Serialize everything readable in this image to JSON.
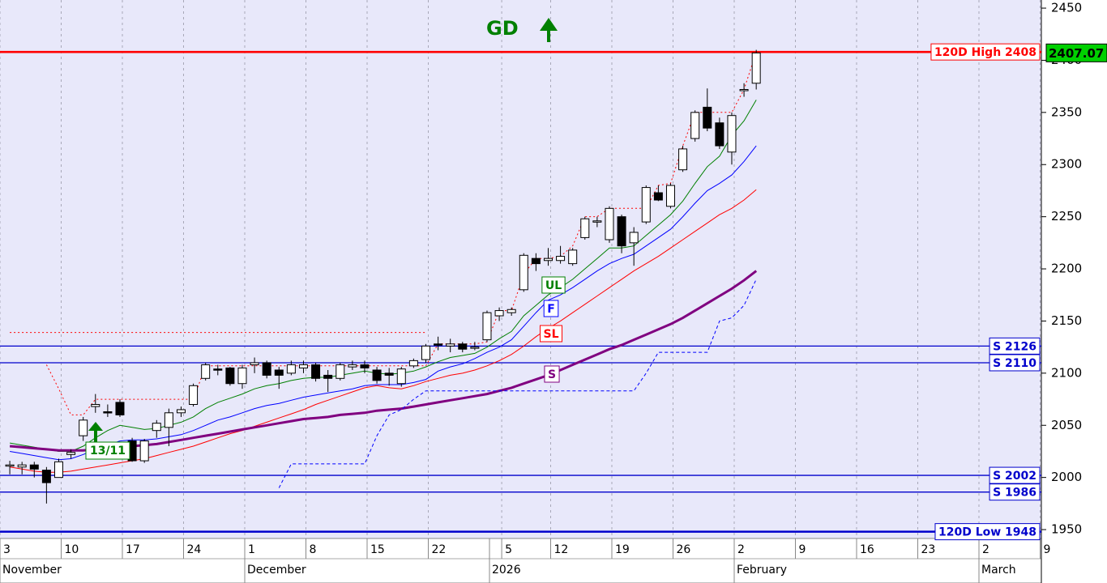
{
  "chart_data": {
    "type": "candlestick",
    "x": [
      0,
      1,
      2,
      3,
      4,
      5,
      6,
      7,
      8,
      9,
      10,
      11,
      12,
      13,
      14,
      15,
      16,
      17,
      18,
      19,
      20,
      21,
      22,
      23,
      24,
      25,
      26,
      27,
      28,
      29,
      30,
      31,
      32,
      33,
      34,
      35,
      36,
      37,
      38,
      39,
      40,
      41,
      42,
      43,
      44,
      45,
      46,
      47,
      48,
      49,
      50,
      51,
      52,
      53,
      54,
      55,
      56,
      57,
      58,
      59,
      60,
      61
    ],
    "open": [
      2012,
      2010,
      2012,
      2007,
      2000,
      2022,
      2040,
      2068,
      2063,
      2072,
      2035,
      2016,
      2045,
      2048,
      2062,
      2070,
      2095,
      2104,
      2105,
      2090,
      2108,
      2110,
      2103,
      2100,
      2105,
      2108,
      2098,
      2095,
      2106,
      2108,
      2103,
      2100,
      2090,
      2107,
      2113,
      2128,
      2126,
      2128,
      2124,
      2132,
      2155,
      2158,
      2180,
      2210,
      2208,
      2208,
      2205,
      2230,
      2245,
      2228,
      2250,
      2225,
      2245,
      2273,
      2260,
      2295,
      2325,
      2355,
      2340,
      2312,
      2371,
      2378
    ],
    "high": [
      2016,
      2015,
      2015,
      2010,
      2018,
      2027,
      2058,
      2080,
      2070,
      2075,
      2038,
      2037,
      2055,
      2066,
      2068,
      2090,
      2110,
      2108,
      2106,
      2108,
      2115,
      2112,
      2106,
      2112,
      2112,
      2110,
      2103,
      2110,
      2112,
      2112,
      2106,
      2105,
      2106,
      2114,
      2128,
      2135,
      2133,
      2130,
      2130,
      2160,
      2163,
      2163,
      2215,
      2215,
      2220,
      2222,
      2220,
      2250,
      2250,
      2260,
      2252,
      2240,
      2280,
      2280,
      2282,
      2318,
      2352,
      2373,
      2345,
      2350,
      2378,
      2410
    ],
    "low": [
      2003,
      2003,
      2000,
      1975,
      2000,
      2018,
      2035,
      2062,
      2058,
      2058,
      2015,
      2014,
      2038,
      2030,
      2058,
      2068,
      2093,
      2098,
      2088,
      2085,
      2100,
      2095,
      2085,
      2098,
      2100,
      2092,
      2082,
      2093,
      2103,
      2100,
      2090,
      2088,
      2087,
      2105,
      2110,
      2122,
      2120,
      2120,
      2122,
      2130,
      2150,
      2155,
      2178,
      2198,
      2203,
      2205,
      2203,
      2228,
      2240,
      2225,
      2215,
      2203,
      2243,
      2265,
      2258,
      2293,
      2322,
      2332,
      2315,
      2300,
      2365,
      2372
    ],
    "close": [
      2012,
      2012,
      2008,
      1995,
      2015,
      2024,
      2055,
      2070,
      2062,
      2060,
      2016,
      2035,
      2052,
      2062,
      2065,
      2088,
      2108,
      2103,
      2090,
      2105,
      2110,
      2098,
      2098,
      2108,
      2108,
      2095,
      2095,
      2108,
      2108,
      2105,
      2093,
      2098,
      2104,
      2112,
      2126,
      2127,
      2128,
      2123,
      2125,
      2158,
      2160,
      2161,
      2213,
      2205,
      2210,
      2212,
      2218,
      2248,
      2246,
      2258,
      2222,
      2235,
      2278,
      2266,
      2280,
      2315,
      2350,
      2335,
      2318,
      2347,
      2372,
      2407.07
    ],
    "xlim": [
      -0.8,
      84.3
    ],
    "ylim": [
      1941.5,
      2457.8
    ],
    "yticks": [
      1950,
      2000,
      2050,
      2100,
      2150,
      2200,
      2250,
      2300,
      2350,
      2400,
      2450
    ],
    "xticks": [
      {
        "value": -0.8,
        "label": "3"
      },
      {
        "value": 4.2,
        "label": "10"
      },
      {
        "value": 9.2,
        "label": "17"
      },
      {
        "value": 14.2,
        "label": "24"
      },
      {
        "value": 19.2,
        "label": "1"
      },
      {
        "value": 24.2,
        "label": "8"
      },
      {
        "value": 29.2,
        "label": "15"
      },
      {
        "value": 34.2,
        "label": "22"
      },
      {
        "value": 40.2,
        "label": "5"
      },
      {
        "value": 44.2,
        "label": "12"
      },
      {
        "value": 49.2,
        "label": "19"
      },
      {
        "value": 54.2,
        "label": "26"
      },
      {
        "value": 59.2,
        "label": "2"
      },
      {
        "value": 64.2,
        "label": "9"
      },
      {
        "value": 69.2,
        "label": "16"
      },
      {
        "value": 74.2,
        "label": "23"
      },
      {
        "value": 79.2,
        "label": "2"
      },
      {
        "value": 84.2,
        "label": "9"
      }
    ],
    "month_labels": [
      {
        "value": -0.8,
        "label": "November"
      },
      {
        "value": 19.2,
        "label": "December"
      },
      {
        "value": 39.2,
        "label": "2026"
      },
      {
        "value": 59.2,
        "label": "February"
      },
      {
        "value": 79.2,
        "label": "March"
      }
    ],
    "grid": true,
    "lines": [
      {
        "label": "UL",
        "color": "#008000",
        "style": "solid",
        "values": [
          2033,
          2031,
          2029,
          2027,
          2025,
          2025,
          2030,
          2038,
          2045,
          2050,
          2048,
          2046,
          2047,
          2050,
          2053,
          2058,
          2066,
          2072,
          2076,
          2080,
          2085,
          2088,
          2090,
          2093,
          2095,
          2096,
          2096,
          2098,
          2100,
          2102,
          2100,
          2099,
          2100,
          2102,
          2106,
          2111,
          2115,
          2117,
          2119,
          2125,
          2133,
          2140,
          2155,
          2165,
          2175,
          2182,
          2190,
          2200,
          2210,
          2220,
          2220,
          2222,
          2232,
          2242,
          2252,
          2265,
          2282,
          2298,
          2308,
          2328,
          2342,
          2362
        ]
      },
      {
        "label": "F",
        "color": "#0000ff",
        "style": "solid",
        "values": [
          2025,
          2023,
          2021,
          2019,
          2017,
          2018,
          2022,
          2027,
          2031,
          2035,
          2036,
          2036,
          2037,
          2039,
          2041,
          2045,
          2050,
          2055,
          2058,
          2062,
          2066,
          2069,
          2071,
          2074,
          2077,
          2079,
          2081,
          2083,
          2085,
          2088,
          2089,
          2089,
          2089,
          2091,
          2094,
          2102,
          2106,
          2109,
          2114,
          2120,
          2125,
          2132,
          2145,
          2158,
          2170,
          2175,
          2182,
          2190,
          2198,
          2205,
          2210,
          2214,
          2222,
          2230,
          2238,
          2250,
          2263,
          2275,
          2282,
          2290,
          2303,
          2318
        ]
      },
      {
        "label": "SL",
        "color": "#ff0000",
        "style": "solid",
        "values": [
          2010,
          2008,
          2006,
          2005,
          2005,
          2006,
          2008,
          2010,
          2012,
          2014,
          2016,
          2018,
          2021,
          2024,
          2027,
          2030,
          2034,
          2038,
          2042,
          2045,
          2049,
          2053,
          2057,
          2061,
          2065,
          2070,
          2074,
          2078,
          2082,
          2086,
          2088,
          2086,
          2085,
          2088,
          2092,
          2095,
          2098,
          2100,
          2103,
          2107,
          2112,
          2118,
          2126,
          2135,
          2143,
          2150,
          2158,
          2166,
          2174,
          2182,
          2190,
          2198,
          2205,
          2212,
          2220,
          2228,
          2236,
          2244,
          2252,
          2258,
          2266,
          2276
        ]
      },
      {
        "label": "S",
        "color": "#800080",
        "style": "bold",
        "values": [
          2030,
          2029,
          2028,
          2027,
          2026,
          2026,
          2026,
          2027,
          2028,
          2029,
          2030,
          2031,
          2032,
          2034,
          2036,
          2038,
          2040,
          2042,
          2044,
          2046,
          2048,
          2050,
          2052,
          2054,
          2056,
          2057,
          2058,
          2060,
          2061,
          2062,
          2064,
          2065,
          2066,
          2068,
          2070,
          2072,
          2074,
          2076,
          2078,
          2080,
          2083,
          2086,
          2090,
          2094,
          2098,
          2103,
          2108,
          2113,
          2118,
          2123,
          2127,
          2132,
          2137,
          2142,
          2147,
          2153,
          2160,
          2167,
          2174,
          2181,
          2189,
          2198
        ]
      },
      {
        "color": "#ff0000",
        "style": "dotted",
        "values": [
          null,
          null,
          null,
          2108,
          2085,
          2060,
          2060,
          2075,
          2075,
          2075,
          2075,
          2075,
          2075,
          2075,
          2075,
          2075,
          2107,
          2107,
          2107,
          2107,
          2107,
          2107,
          2107,
          2107,
          2107,
          2107,
          2107,
          2107,
          2107,
          2107,
          2107,
          2107,
          2107,
          2107,
          2107,
          2128,
          2128,
          2128,
          2128,
          2130,
          2160,
          2160,
          2195,
          2210,
          2210,
          2212,
          2222,
          2250,
          2250,
          2258,
          2258,
          2258,
          2258,
          2280,
          2282,
          2318,
          2350,
          2350,
          2350,
          2350,
          2372,
          2408
        ]
      },
      {
        "color": "#ff0000",
        "style": "dotted",
        "values": [
          2139,
          2139,
          2139,
          2139,
          2139,
          2139,
          2139,
          2139,
          2139,
          2139,
          2139,
          2139,
          2139,
          2139,
          2139,
          2139,
          2139,
          2139,
          2139,
          2139,
          2139,
          2139,
          2139,
          2139,
          2139,
          2139,
          2139,
          2139,
          2139,
          2139,
          2139,
          2139,
          2139,
          2139,
          2139,
          null,
          null,
          null,
          null,
          null,
          null,
          null,
          null,
          null,
          null,
          null,
          null,
          null,
          null,
          null,
          null,
          null,
          null,
          null,
          null,
          null,
          null,
          null,
          null,
          null,
          null,
          null
        ]
      },
      {
        "color": "#0000ff",
        "style": "dashed",
        "values": [
          null,
          null,
          null,
          null,
          null,
          null,
          null,
          null,
          null,
          null,
          null,
          null,
          null,
          null,
          null,
          null,
          null,
          null,
          null,
          null,
          null,
          null,
          1990,
          2013,
          2013,
          2013,
          2013,
          2013,
          2013,
          2013,
          2040,
          2060,
          2065,
          2075,
          2083,
          2083,
          2083,
          2083,
          2083,
          2083,
          2083,
          2083,
          2083,
          2083,
          2083,
          2083,
          2083,
          2083,
          2083,
          2083,
          2083,
          2083,
          2100,
          2120,
          2120,
          2120,
          2120,
          2120,
          2150,
          2153,
          2165,
          2190
        ]
      }
    ],
    "levels": [
      {
        "label": "120D High 2408",
        "value": 2408,
        "color": "#ff0000",
        "style": "bold"
      },
      {
        "label": "S 2126",
        "value": 2126,
        "color": "#0000cc",
        "style": "solid"
      },
      {
        "label": "S 2110",
        "value": 2110,
        "color": "#0000cc",
        "style": "solid"
      },
      {
        "label": "S 2002",
        "value": 2002,
        "color": "#0000cc",
        "style": "solid"
      },
      {
        "label": "S 1986",
        "value": 1986,
        "color": "#0000cc",
        "style": "solid"
      },
      {
        "label": "120D Low 1948",
        "value": 1948,
        "color": "#0000cc",
        "style": "bold"
      }
    ],
    "last_price": 2407.07,
    "annotations": {
      "signal_top": "GD",
      "signal_date": "13/11"
    }
  }
}
